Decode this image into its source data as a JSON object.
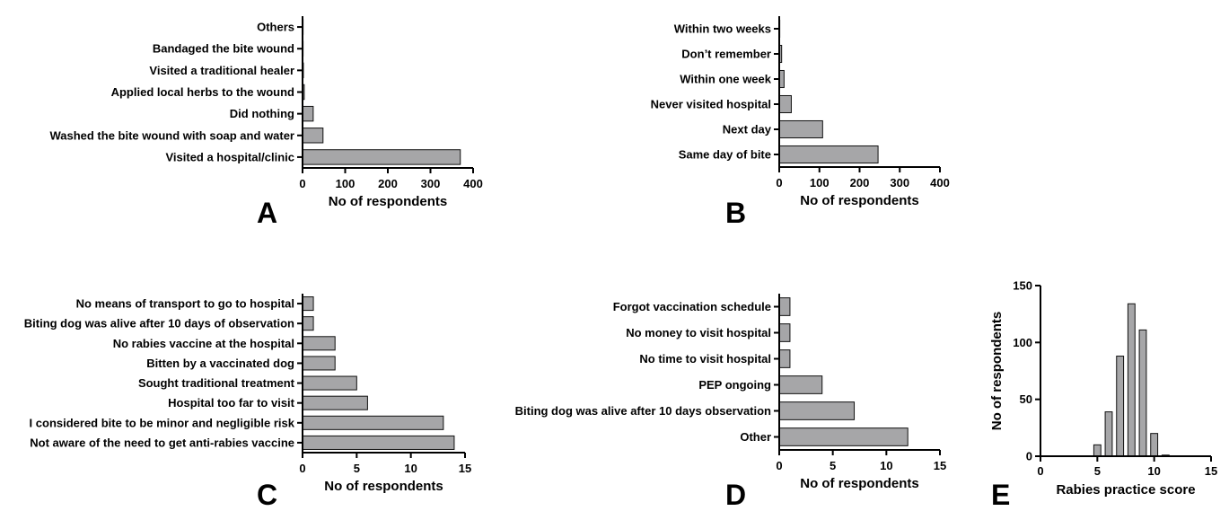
{
  "chart_data": [
    {
      "panel": "A",
      "type": "bar",
      "orientation": "horizontal",
      "categories": [
        "Visited a hospital/clinic",
        "Washed the bite wound with soap and water",
        "Did nothing",
        "Applied local herbs to the wound",
        "Visited a traditional healer",
        "Bandaged the bite wound",
        "Others"
      ],
      "values": [
        370,
        48,
        25,
        4,
        2,
        1,
        0
      ],
      "xlabel": "No of respondents",
      "xlim": [
        0,
        400
      ],
      "xticks": [
        0,
        100,
        200,
        300,
        400
      ]
    },
    {
      "panel": "B",
      "type": "bar",
      "orientation": "horizontal",
      "categories": [
        "Same day of bite",
        "Next day",
        "Never visited hospital",
        "Within one week",
        "Don’t remember",
        "Within two weeks"
      ],
      "values": [
        246,
        108,
        30,
        12,
        6,
        1
      ],
      "xlabel": "No of respondents",
      "xlim": [
        0,
        400
      ],
      "xticks": [
        0,
        100,
        200,
        300,
        400
      ]
    },
    {
      "panel": "C",
      "type": "bar",
      "orientation": "horizontal",
      "categories": [
        "Not aware of the need to get anti-rabies vaccine",
        "I considered bite to be minor and negligible risk",
        "Hospital too far to visit",
        "Sought traditional treatment",
        "Bitten by a vaccinated dog",
        "No rabies vaccine at the hospital",
        "Biting dog was alive after 10 days of observation",
        "No means of transport to go to hospital"
      ],
      "values": [
        14,
        13,
        6,
        5,
        3,
        3,
        1,
        1
      ],
      "xlabel": "No of respondents",
      "xlim": [
        0,
        15
      ],
      "xticks": [
        0,
        5,
        10,
        15
      ]
    },
    {
      "panel": "D",
      "type": "bar",
      "orientation": "horizontal",
      "categories": [
        "Other",
        "Biting dog was alive after 10 days observation",
        "PEP ongoing",
        "No time to visit hospital",
        "No money to visit hospital",
        "Forgot vaccination schedule"
      ],
      "values": [
        12,
        7,
        4,
        1,
        1,
        1
      ],
      "xlabel": "No of respondents",
      "xlim": [
        0,
        15
      ],
      "xticks": [
        0,
        5,
        10,
        15
      ]
    },
    {
      "panel": "E",
      "type": "bar",
      "orientation": "vertical",
      "x": [
        5,
        6,
        7,
        8,
        9,
        10,
        11
      ],
      "values": [
        10,
        39,
        88,
        134,
        111,
        20,
        1
      ],
      "xlabel": "Rabies practice score",
      "ylabel": "No of respondents",
      "xlim": [
        0,
        15
      ],
      "ylim": [
        0,
        150
      ],
      "xticks": [
        0,
        5,
        10,
        15
      ],
      "yticks": [
        0,
        50,
        100,
        150
      ]
    }
  ],
  "colors": {
    "bar_fill": "#a6a6a8",
    "bar_stroke": "#111111",
    "axis": "#000000"
  }
}
